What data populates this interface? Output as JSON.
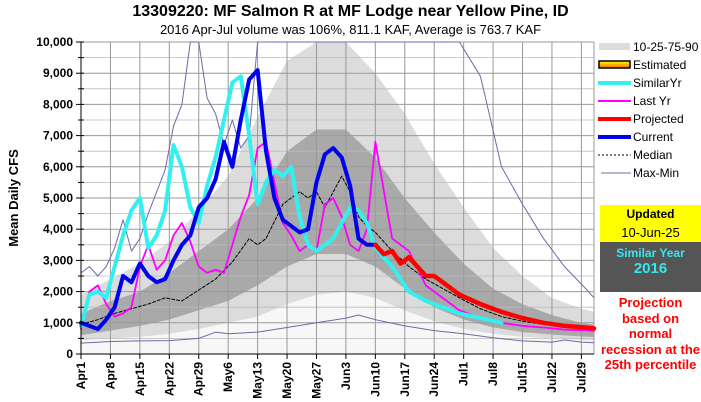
{
  "title": "13309220: MF Salmon R at MF Lodge near Yellow Pine, ID",
  "subtitle": "2016 Apr-Jul volume was 106%, 811.1 KAF, Average is 763.7 KAF",
  "legend": {
    "items": [
      {
        "key": "bands",
        "label": "10-25-75-90",
        "color": "#dddddd"
      },
      {
        "key": "estimated",
        "label": "Estimated",
        "color": "#ffc000"
      },
      {
        "key": "similar",
        "label": "SimilarYr",
        "color": "#33f0f0"
      },
      {
        "key": "lastyr",
        "label": "Last Yr",
        "color": "#ff00ff"
      },
      {
        "key": "projected",
        "label": "Projected",
        "color": "#ff0000"
      },
      {
        "key": "current",
        "label": "Current",
        "color": "#0000ee"
      },
      {
        "key": "median",
        "label": "Median",
        "color": "#000000"
      },
      {
        "key": "maxmin",
        "label": "Max-Min",
        "color": "#6b6ba8"
      }
    ]
  },
  "updated": {
    "title": "Updated",
    "date": "10-Jun-25"
  },
  "similar_year": {
    "title": "Similar Year",
    "year": "2016"
  },
  "note": "Projection based on normal recession at the 25th percentile",
  "chart_data": {
    "type": "line",
    "title": "13309220: MF Salmon R at MF Lodge near Yellow Pine, ID",
    "subtitle": "2016 Apr-Jul volume was 106%, 811.1 KAF, Average is 763.7 KAF",
    "xlabel": "",
    "ylabel": "Mean Daily CFS",
    "ylim": [
      0,
      10000
    ],
    "xlim_days": [
      0,
      122
    ],
    "x_unit": "days since Apr1",
    "grid": true,
    "legend_position": "right",
    "yticks": [
      0,
      1000,
      2000,
      3000,
      4000,
      5000,
      6000,
      7000,
      8000,
      9000,
      10000
    ],
    "ytick_labels": [
      "0",
      "1,000",
      "2,000",
      "3,000",
      "4,000",
      "5,000",
      "6,000",
      "7,000",
      "8,000",
      "9,000",
      "10,000"
    ],
    "xticks": [
      0,
      7,
      14,
      21,
      28,
      35,
      42,
      49,
      56,
      63,
      70,
      77,
      84,
      91,
      98,
      105,
      112,
      119
    ],
    "xtick_labels": [
      "Apr1",
      "Apr8",
      "Apr15",
      "Apr22",
      "Apr29",
      "May6",
      "May13",
      "May20",
      "May27",
      "Jun3",
      "Jun10",
      "Jun17",
      "Jun24",
      "Jul1",
      "Jul8",
      "Jul15",
      "Jul22",
      "Jul29"
    ],
    "percentile_bands": {
      "x": [
        0,
        7,
        14,
        21,
        28,
        35,
        42,
        49,
        56,
        63,
        70,
        77,
        84,
        91,
        98,
        105,
        112,
        119,
        122
      ],
      "p10": [
        450,
        500,
        550,
        650,
        800,
        1000,
        1200,
        1600,
        1900,
        2000,
        1800,
        1400,
        1050,
        800,
        650,
        550,
        500,
        450,
        430
      ],
      "p25": [
        600,
        750,
        900,
        1100,
        1400,
        1700,
        2200,
        2800,
        3200,
        3200,
        2800,
        2100,
        1500,
        1100,
        850,
        700,
        620,
        560,
        540
      ],
      "p75": [
        1300,
        1700,
        2000,
        2600,
        3300,
        4000,
        5000,
        6500,
        7200,
        7200,
        6300,
        5000,
        3900,
        2900,
        2100,
        1600,
        1250,
        1000,
        950
      ],
      "p90": [
        1900,
        2400,
        2900,
        3600,
        4600,
        5700,
        7600,
        9400,
        10000,
        10000,
        9000,
        7700,
        6100,
        4700,
        3400,
        2500,
        1800,
        1450,
        1350
      ]
    },
    "series": [
      {
        "name": "Max",
        "color": "#6b6ba8",
        "x": [
          0,
          2,
          4,
          6,
          8,
          10,
          12,
          14,
          16,
          18,
          20,
          22,
          24,
          26,
          28,
          30,
          32,
          34,
          36,
          38,
          40,
          42,
          44,
          46,
          48,
          50,
          55,
          60,
          65,
          70,
          75,
          80,
          85,
          90,
          95,
          100,
          105,
          110,
          115,
          120,
          122
        ],
        "y": [
          2600,
          2800,
          2500,
          2800,
          3400,
          4300,
          3300,
          3700,
          4500,
          5200,
          5900,
          7300,
          8000,
          10000,
          10000,
          8200,
          7700,
          6700,
          7500,
          6600,
          7000,
          10000,
          10000,
          10000,
          10000,
          10000,
          10000,
          10000,
          10000,
          10000,
          10000,
          10000,
          10000,
          10000,
          8900,
          6000,
          4800,
          3700,
          2800,
          2100,
          1800
        ]
      },
      {
        "name": "Min",
        "color": "#6b6ba8",
        "x": [
          0,
          7,
          14,
          21,
          28,
          32,
          35,
          42,
          49,
          56,
          63,
          66,
          70,
          77,
          84,
          91,
          98,
          105,
          112,
          115,
          119,
          122
        ],
        "y": [
          350,
          400,
          420,
          430,
          500,
          700,
          650,
          700,
          850,
          1000,
          1150,
          1250,
          1100,
          900,
          750,
          650,
          520,
          420,
          380,
          450,
          380,
          360
        ]
      },
      {
        "name": "Median",
        "color": "#000000",
        "dashed": true,
        "x": [
          0,
          4,
          8,
          12,
          16,
          20,
          24,
          28,
          32,
          36,
          40,
          42,
          44,
          48,
          50,
          52,
          54,
          56,
          58,
          60,
          62,
          64,
          66,
          68,
          70,
          74,
          78,
          82,
          86,
          90,
          95,
          100,
          105,
          110,
          115,
          120,
          122
        ],
        "y": [
          950,
          1100,
          1300,
          1450,
          1600,
          1800,
          1700,
          2050,
          2400,
          2950,
          3700,
          3500,
          3700,
          4800,
          5000,
          5200,
          5000,
          5200,
          4700,
          5200,
          5700,
          5200,
          4400,
          4100,
          3900,
          3300,
          2800,
          2400,
          2100,
          1800,
          1450,
          1200,
          1050,
          950,
          900,
          850,
          830
        ]
      },
      {
        "name": "Last Yr",
        "color": "#ff00ff",
        "x": [
          0,
          2,
          4,
          6,
          8,
          10,
          12,
          14,
          16,
          18,
          20,
          22,
          24,
          26,
          28,
          30,
          32,
          34,
          36,
          38,
          40,
          42,
          44,
          46,
          48,
          50,
          52,
          54,
          56,
          58,
          60,
          62,
          64,
          66,
          68,
          70,
          74,
          78,
          82,
          86,
          90,
          95,
          100,
          105,
          110,
          115,
          120,
          122
        ],
        "y": [
          800,
          2000,
          2200,
          1600,
          1200,
          1300,
          1500,
          2800,
          3500,
          2700,
          3000,
          3800,
          4200,
          3600,
          2800,
          2600,
          2700,
          2600,
          3500,
          4400,
          5100,
          6600,
          6800,
          5500,
          4200,
          3800,
          3300,
          3500,
          3300,
          4800,
          5000,
          4400,
          3500,
          3300,
          4000,
          6800,
          3700,
          3300,
          2200,
          1800,
          1400,
          1150,
          1000,
          900,
          850,
          780,
          760,
          740
        ]
      },
      {
        "name": "SimilarYr",
        "color": "#33f0f0",
        "x": [
          0,
          2,
          4,
          6,
          8,
          10,
          12,
          14,
          16,
          18,
          20,
          22,
          24,
          26,
          28,
          30,
          32,
          34,
          36,
          38,
          40,
          42,
          44,
          46,
          48,
          50,
          52,
          54,
          56,
          58,
          60,
          62,
          64,
          66,
          68,
          70,
          74,
          78,
          82,
          86,
          90,
          95,
          100
        ],
        "y": [
          900,
          1900,
          2000,
          1800,
          2800,
          3800,
          4600,
          5000,
          3400,
          3800,
          4600,
          6700,
          6000,
          4700,
          4200,
          5400,
          6300,
          7500,
          8700,
          8900,
          7000,
          4800,
          5500,
          5900,
          5700,
          6000,
          4400,
          3500,
          3300,
          3500,
          3700,
          4200,
          4700,
          4600,
          4200,
          3400,
          2800,
          2000,
          1700,
          1500,
          1300,
          1150,
          1000
        ]
      },
      {
        "name": "Current",
        "color": "#0000ee",
        "x": [
          0,
          2,
          4,
          6,
          8,
          10,
          12,
          14,
          16,
          18,
          20,
          22,
          24,
          26,
          28,
          30,
          32,
          34,
          36,
          38,
          40,
          42,
          44,
          46,
          48,
          50,
          52,
          54,
          56,
          58,
          60,
          62,
          64,
          66,
          68,
          70
        ],
        "y": [
          1000,
          900,
          800,
          1100,
          1500,
          2500,
          2300,
          2900,
          2500,
          2300,
          2400,
          3000,
          3500,
          3800,
          4700,
          5000,
          5600,
          6800,
          6000,
          7500,
          8800,
          9100,
          6500,
          5000,
          4300,
          4100,
          3900,
          4000,
          5500,
          6400,
          6600,
          6300,
          5400,
          3700,
          3500,
          3500
        ]
      },
      {
        "name": "Projected",
        "color": "#ff0000",
        "x": [
          70,
          72,
          74,
          76,
          78,
          80,
          82,
          84,
          86,
          88,
          90,
          95,
          100,
          105,
          110,
          115,
          120,
          122
        ],
        "y": [
          3500,
          3200,
          3300,
          2900,
          3100,
          2800,
          2500,
          2500,
          2300,
          2100,
          1900,
          1600,
          1350,
          1150,
          1000,
          900,
          850,
          820
        ]
      }
    ]
  }
}
